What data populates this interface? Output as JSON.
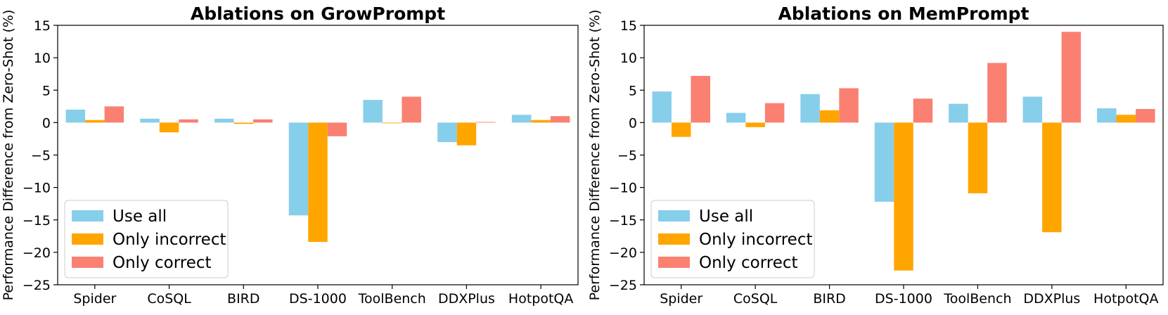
{
  "colors": {
    "use_all": "#87ceeb",
    "only_incorrect": "#ffa500",
    "only_correct": "#fa8072"
  },
  "chart_data": [
    {
      "type": "bar",
      "title": "Ablations on GrowPrompt",
      "xlabel": "",
      "ylabel": "Performance Difference from Zero-Shot (%)",
      "ylim": [
        -25,
        15
      ],
      "yticks": [
        15,
        10,
        5,
        0,
        -5,
        -10,
        -15,
        -20,
        -25
      ],
      "ytick_labels": [
        "15",
        "10",
        "5",
        "0",
        "−5",
        "−10",
        "−15",
        "−20",
        "−25"
      ],
      "categories": [
        "Spider",
        "CoSQL",
        "BIRD",
        "DS-1000",
        "ToolBench",
        "DDXPlus",
        "HotpotQA"
      ],
      "series": [
        {
          "name": "Use all",
          "values": [
            2.0,
            0.6,
            0.6,
            -14.3,
            3.5,
            -3.0,
            1.2
          ]
        },
        {
          "name": "Only incorrect",
          "values": [
            0.4,
            -1.5,
            -0.2,
            -18.4,
            -0.1,
            -3.5,
            0.4
          ]
        },
        {
          "name": "Only correct",
          "values": [
            2.5,
            0.5,
            0.5,
            -2.1,
            4.0,
            0.1,
            1.0
          ]
        }
      ],
      "legend": "lower-left",
      "grid": false
    },
    {
      "type": "bar",
      "title": "Ablations on MemPrompt",
      "xlabel": "",
      "ylabel": "Performance Difference from Zero-Shot (%)",
      "ylim": [
        -25,
        15
      ],
      "yticks": [
        15,
        10,
        5,
        0,
        -5,
        -10,
        -15,
        -20,
        -25
      ],
      "ytick_labels": [
        "15",
        "10",
        "5",
        "0",
        "−5",
        "−10",
        "−15",
        "−20",
        "−25"
      ],
      "categories": [
        "Spider",
        "CoSQL",
        "BIRD",
        "DS-1000",
        "ToolBench",
        "DDXPlus",
        "HotpotQA"
      ],
      "series": [
        {
          "name": "Use all",
          "values": [
            4.8,
            1.5,
            4.4,
            -12.2,
            2.9,
            4.0,
            2.2
          ]
        },
        {
          "name": "Only incorrect",
          "values": [
            -2.2,
            -0.7,
            1.9,
            -22.8,
            -10.9,
            -16.9,
            1.2
          ]
        },
        {
          "name": "Only correct",
          "values": [
            7.2,
            3.0,
            5.3,
            3.7,
            9.2,
            14.0,
            2.1
          ]
        }
      ],
      "legend": "lower-left",
      "grid": false
    }
  ]
}
